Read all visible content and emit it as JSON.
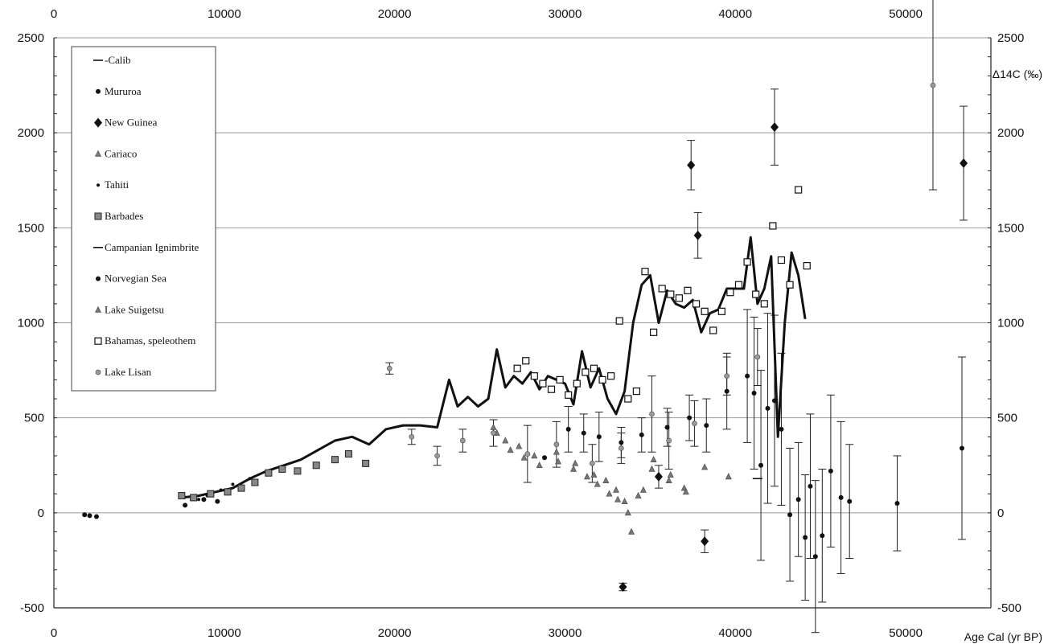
{
  "chart_data": {
    "type": "scatter",
    "xlim": [
      0,
      55000
    ],
    "ylim": [
      -500,
      2500
    ],
    "x_ticks": [
      0,
      10000,
      20000,
      30000,
      40000,
      50000
    ],
    "y_ticks": [
      -500,
      0,
      500,
      1000,
      1500,
      2000,
      2500
    ],
    "xlabel": "Age Cal (yr BP)",
    "ylabel": "Δ14C (‰)",
    "grid": "horizontal",
    "legend_position": "top-left",
    "series": [
      {
        "name": "-Calib",
        "marker": "dash",
        "values": []
      },
      {
        "name": "Mururoa",
        "marker": "dot",
        "x": [
          1800,
          2100,
          2500,
          7700,
          8800,
          9600
        ],
        "y": [
          -10,
          -15,
          -20,
          40,
          70,
          60
        ]
      },
      {
        "name": "New Guinea",
        "marker": "diamond",
        "x": [
          33400,
          35500,
          37400,
          37800,
          38200,
          42300,
          53400
        ],
        "y": [
          -390,
          190,
          1830,
          1460,
          -150,
          2030,
          1840
        ],
        "err": [
          20,
          60,
          130,
          120,
          60,
          200,
          300
        ]
      },
      {
        "name": "Cariaco",
        "marker": "triangle",
        "x": [
          25800,
          26500,
          27300,
          28200,
          29500,
          30600,
          31700,
          32400,
          33000,
          33500,
          33900,
          34600,
          35200,
          36200,
          37000,
          38200,
          39600
        ],
        "y": [
          450,
          380,
          350,
          300,
          320,
          260,
          200,
          170,
          120,
          60,
          -100,
          120,
          280,
          200,
          130,
          240,
          190
        ]
      },
      {
        "name": "Tahiti",
        "marker": "small-dot",
        "x": [
          8500,
          9000,
          9800,
          10500,
          11500,
          12500,
          13400
        ],
        "y": [
          70,
          90,
          120,
          150,
          180,
          200,
          230
        ]
      },
      {
        "name": "Barbades",
        "marker": "square-dot",
        "x": [
          7500,
          8200,
          9200,
          10200,
          11000,
          11800,
          12600,
          13400,
          14300,
          15400,
          16500,
          17300,
          18300
        ],
        "y": [
          90,
          80,
          100,
          110,
          130,
          160,
          210,
          230,
          220,
          250,
          280,
          310,
          260
        ]
      },
      {
        "name": "Campanian Ignimbrite",
        "marker": "dash",
        "x": [
          41300
        ],
        "y": [
          180
        ]
      },
      {
        "name": "Norvegian Sea",
        "marker": "dot",
        "x": [
          28800,
          30200,
          31100,
          32000,
          33300,
          34500,
          36000,
          37300,
          38300,
          39500,
          40700,
          41100,
          41500,
          41900,
          42300,
          42700,
          43200,
          43700,
          44100,
          44400,
          44700,
          45100,
          45600,
          46200,
          46700,
          49500,
          53300
        ],
        "y": [
          290,
          440,
          420,
          400,
          370,
          410,
          450,
          500,
          460,
          640,
          720,
          630,
          250,
          550,
          590,
          440,
          -10,
          70,
          -130,
          140,
          -230,
          -120,
          220,
          80,
          60,
          50,
          340
        ],
        "err": [
          0,
          120,
          100,
          130,
          80,
          90,
          100,
          120,
          140,
          200,
          350,
          400,
          500,
          500,
          450,
          400,
          350,
          300,
          330,
          380,
          400,
          350,
          400,
          400,
          300,
          250,
          480
        ]
      },
      {
        "name": "Lake Suigetsu",
        "marker": "triangle",
        "x": [
          26000,
          26800,
          27600,
          28500,
          29600,
          30500,
          31300,
          31900,
          32600,
          33100,
          33700,
          34300,
          35100,
          36100,
          37100
        ],
        "y": [
          420,
          330,
          290,
          250,
          270,
          230,
          190,
          150,
          100,
          70,
          0,
          90,
          230,
          170,
          110
        ]
      },
      {
        "name": "Bahamas, speleothem",
        "marker": "open-square",
        "x": [
          27200,
          27700,
          28200,
          28700,
          29200,
          29700,
          30200,
          30700,
          31200,
          31700,
          32200,
          32700,
          33200,
          33700,
          34200,
          34700,
          35200,
          35700,
          36200,
          36700,
          37200,
          37700,
          38200,
          38700,
          39200,
          39700,
          40200,
          40700,
          41200,
          41700,
          42200,
          42700,
          43200,
          43700,
          44200
        ],
        "y": [
          760,
          800,
          720,
          680,
          650,
          700,
          620,
          680,
          740,
          760,
          700,
          720,
          1010,
          600,
          640,
          1270,
          950,
          1180,
          1150,
          1130,
          1170,
          1100,
          1060,
          960,
          1060,
          1160,
          1200,
          1320,
          1150,
          1100,
          1510,
          1330,
          1200,
          1700,
          1300
        ]
      },
      {
        "name": "Lake Lisan",
        "marker": "grey-dot",
        "x": [
          19700,
          21000,
          22500,
          24000,
          25800,
          27800,
          29500,
          31600,
          33300,
          35100,
          36100,
          37600,
          39500,
          41300,
          51600
        ],
        "y": [
          760,
          400,
          300,
          380,
          420,
          310,
          360,
          260,
          340,
          520,
          380,
          470,
          720,
          820,
          2250
        ],
        "err": [
          30,
          40,
          50,
          60,
          70,
          150,
          120,
          100,
          80,
          200,
          150,
          120,
          100,
          150,
          550
        ]
      }
    ],
    "line_series": {
      "name": "Calib",
      "x": [
        7500,
        8500,
        9500,
        10500,
        11500,
        12500,
        13500,
        14500,
        15500,
        16500,
        17500,
        18500,
        19500,
        20500,
        21500,
        22500,
        23200,
        23700,
        24300,
        24900,
        25500,
        26000,
        26500,
        27000,
        27500,
        28000,
        28500,
        29000,
        29500,
        30000,
        30500,
        31000,
        31500,
        32000,
        32500,
        33000,
        33500,
        34000,
        34500,
        35000,
        35500,
        36000,
        36500,
        37000,
        37500,
        38000,
        38500,
        39000,
        39500,
        40000,
        40500,
        40900,
        41300,
        41700,
        42100,
        42500,
        42900,
        43300,
        43700,
        44100
      ],
      "y": [
        80,
        90,
        110,
        130,
        180,
        220,
        250,
        280,
        330,
        380,
        400,
        360,
        440,
        460,
        460,
        450,
        700,
        560,
        610,
        560,
        600,
        860,
        660,
        720,
        680,
        740,
        650,
        720,
        700,
        680,
        570,
        850,
        660,
        760,
        600,
        520,
        640,
        1000,
        1200,
        1250,
        1000,
        1170,
        1100,
        1080,
        1120,
        950,
        1050,
        1070,
        1180,
        1180,
        1180,
        1450,
        1100,
        1180,
        1350,
        400,
        1000,
        1370,
        1250,
        1020
      ]
    }
  }
}
